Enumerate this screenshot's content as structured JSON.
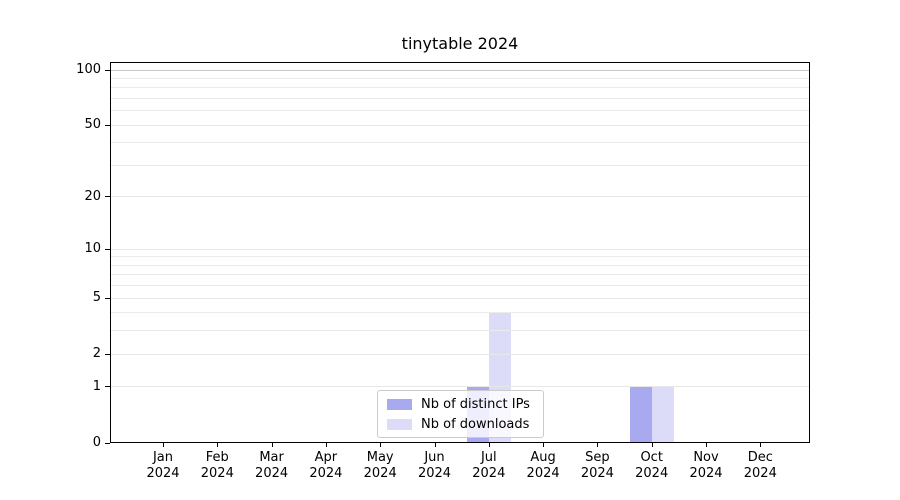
{
  "chart_data": {
    "type": "bar",
    "title": "tinytable 2024",
    "categories": [
      "Jan",
      "Feb",
      "Mar",
      "Apr",
      "May",
      "Jun",
      "Jul",
      "Aug",
      "Sep",
      "Oct",
      "Nov",
      "Dec"
    ],
    "x_year_label": "2024",
    "series": [
      {
        "name": "Nb of distinct IPs",
        "color": "#a9a9f0",
        "values": [
          0,
          0,
          0,
          0,
          0,
          0,
          1,
          0,
          0,
          1,
          0,
          0
        ]
      },
      {
        "name": "Nb of downloads",
        "color": "#dcdcf8",
        "values": [
          0,
          0,
          0,
          0,
          0,
          0,
          4,
          0,
          0,
          1,
          0,
          0
        ]
      }
    ],
    "y_scale": "log1p",
    "y_ticks": [
      0,
      1,
      2,
      5,
      10,
      20,
      50,
      100
    ],
    "y_minor_gridlines": [
      3,
      4,
      6,
      7,
      8,
      9,
      30,
      40,
      60,
      70,
      80,
      90
    ],
    "ylim": [
      0,
      110
    ],
    "grid": true,
    "legend_position": "lower center",
    "colors": {
      "grid_minor": "#ebebeb",
      "grid_major": "#e7e7e7",
      "grid_top_100": "#c6c6c6",
      "axis": "#000000",
      "background": "#ffffff"
    }
  }
}
